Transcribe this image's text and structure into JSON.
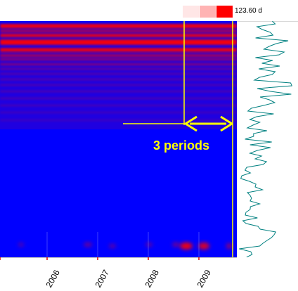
{
  "legend": {
    "swatch_colors": [
      "#ffe6e6",
      "#ffb3b3",
      "#ff0000"
    ],
    "max_label": "123.60 d"
  },
  "chart_data": {
    "type": "heatmap",
    "title": "",
    "xlabel": "",
    "ylabel": "",
    "x_ticks": [
      "2006",
      "2007",
      "2008",
      "2009"
    ],
    "annotation": "3 periods",
    "colors": {
      "low": "#0000ff",
      "high": "#ff0000",
      "annotation": "#ffff00",
      "trace": "#008080"
    }
  }
}
